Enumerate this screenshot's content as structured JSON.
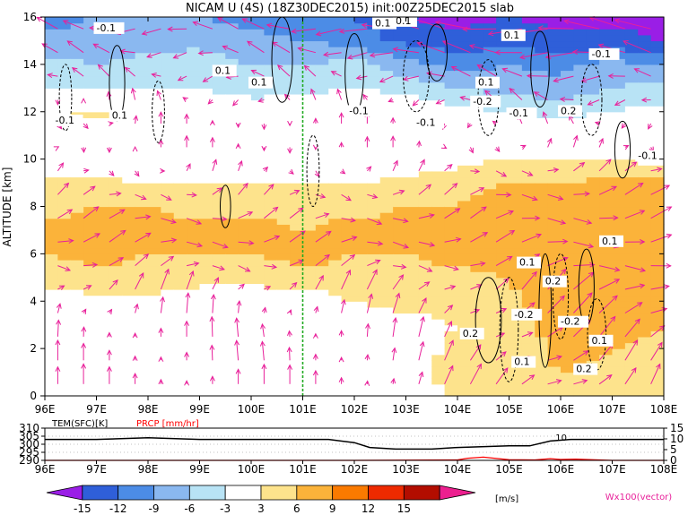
{
  "title": "NICAM U (4S) (18Z30DEC2015) init:00Z25DEC2015 slab",
  "chart_data": [
    {
      "type": "heatmap",
      "name": "zonal-wind cross section",
      "ylabel": "ALTITUDE [km]",
      "x_ticks": [
        "96E",
        "97E",
        "98E",
        "99E",
        "100E",
        "101E",
        "102E",
        "103E",
        "104E",
        "105E",
        "106E",
        "107E",
        "108E"
      ],
      "y_ticks": [
        "0",
        "2",
        "4",
        "6",
        "8",
        "10",
        "12",
        "14",
        "16"
      ],
      "xlim": [
        96,
        108
      ],
      "ylim": [
        0,
        16
      ],
      "marker_line_lon": 101,
      "altitudes_km": [
        0,
        1,
        2,
        3,
        4,
        5,
        6,
        7,
        8,
        9,
        10,
        11,
        12,
        13,
        14,
        15,
        16
      ],
      "lons": [
        96,
        97,
        98,
        99,
        100,
        101,
        102,
        103,
        104,
        105,
        106,
        107,
        108
      ],
      "u_ms": [
        [
          0,
          0,
          0,
          0,
          0,
          0,
          0,
          0,
          4,
          5,
          6,
          5,
          3
        ],
        [
          0,
          0,
          0,
          0,
          0,
          0,
          0,
          1,
          5,
          5,
          6,
          5,
          4
        ],
        [
          0,
          0,
          0,
          0,
          -2,
          0,
          0,
          1,
          4,
          3,
          7,
          6,
          5
        ],
        [
          1,
          0,
          0,
          0,
          0,
          0,
          0,
          2,
          3,
          4,
          8,
          7,
          6
        ],
        [
          1,
          2,
          2,
          1,
          1,
          1,
          3,
          4,
          4,
          5,
          8,
          8,
          7
        ],
        [
          4,
          5,
          5,
          4,
          4,
          5,
          5,
          5,
          5,
          6,
          9,
          9,
          8
        ],
        [
          6,
          7,
          6,
          6,
          6,
          7,
          6,
          6,
          7,
          8,
          9,
          8,
          9
        ],
        [
          7,
          7,
          7,
          7,
          7,
          6,
          7,
          7,
          7,
          8,
          8,
          8,
          9
        ],
        [
          5,
          6,
          6,
          5,
          5,
          5,
          5,
          6,
          6,
          7,
          7,
          8,
          9
        ],
        [
          4,
          4,
          3,
          3,
          3,
          3,
          3,
          4,
          5,
          6,
          6,
          7,
          7
        ],
        [
          1,
          0,
          0,
          0,
          0,
          0,
          0,
          0,
          2,
          3,
          3,
          3,
          2
        ],
        [
          0,
          0,
          0,
          0,
          0,
          0,
          0,
          0,
          0,
          0,
          0,
          0,
          0
        ],
        [
          3,
          4,
          0,
          0,
          0,
          0,
          0,
          0,
          -2,
          -3,
          -4,
          -3,
          -2
        ],
        [
          -3,
          -4,
          -3,
          -3,
          -5,
          -4,
          -3,
          -4,
          -6,
          -7,
          -8,
          -6,
          -5
        ],
        [
          -5,
          -6,
          -5,
          -4,
          -6,
          -6,
          -5,
          -8,
          -10,
          -9,
          -10,
          -8,
          -9
        ],
        [
          -8,
          -8,
          -7,
          -7,
          -8,
          -9,
          -10,
          -13,
          -14,
          -13,
          -14,
          -14,
          -15
        ],
        [
          -10,
          -9,
          -9,
          -9,
          -10,
          -11,
          -12,
          -15,
          -16,
          -15,
          -16,
          -16,
          -16
        ]
      ],
      "w_contour_labels": [
        "-0.1",
        "0.1",
        "0.1",
        "0.1",
        "-0.1",
        "0.1",
        "-0.1",
        "-0.1",
        "0.1",
        "-0.2",
        "-0.1",
        "0.2",
        "0.1",
        "-0.1",
        "-0.1",
        "0.1",
        "0.1",
        "0.2",
        "-0.2",
        "-0.2",
        "0.2",
        "0.1",
        "0.1",
        "0.2",
        "0.1"
      ]
    },
    {
      "type": "line",
      "name": "surface panel",
      "x_ticks": [
        "96E",
        "97E",
        "98E",
        "99E",
        "100E",
        "101E",
        "102E",
        "103E",
        "104E",
        "105E",
        "106E",
        "107E",
        "108E"
      ],
      "left_label": "TEM(SFC)[K]",
      "right_label": "PRCP [mm/hr]",
      "left_ticks": [
        "310",
        "305",
        "300",
        "295",
        "290"
      ],
      "right_ticks": [
        "15",
        "10",
        "5",
        "0"
      ],
      "left_ylim": [
        290,
        310
      ],
      "right_ylim": [
        0,
        15
      ],
      "annotation": "10",
      "series": [
        {
          "name": "TEM(SFC)[K]",
          "color": "#000000",
          "x": [
            96,
            97,
            98,
            99,
            100,
            101,
            101.5,
            102,
            102.3,
            102.8,
            103.5,
            104,
            105,
            105.4,
            105.8,
            106.2,
            107,
            108
          ],
          "y": [
            303,
            303,
            304,
            303,
            303,
            303,
            303,
            301,
            298,
            297,
            297,
            298,
            299,
            299,
            302,
            303,
            303,
            303
          ]
        },
        {
          "name": "PRCP [mm/hr]",
          "color": "#ff0000",
          "x": [
            96,
            101,
            102,
            103,
            104,
            104.2,
            104.5,
            104.8,
            105,
            105.5,
            105.8,
            106,
            106.3,
            106.6,
            107,
            108
          ],
          "y": [
            0,
            0,
            0,
            0.1,
            0.2,
            1.0,
            1.5,
            0.8,
            0.3,
            0.2,
            0.8,
            0.4,
            0.6,
            0.3,
            0,
            0
          ]
        }
      ]
    }
  ],
  "colorbar": {
    "ticks": [
      "-15",
      "-12",
      "-9",
      "-6",
      "-3",
      "3",
      "6",
      "9",
      "12",
      "15"
    ],
    "unit": "[m/s]",
    "colors": [
      "#9a1ee6",
      "#2f5fd9",
      "#4c8ce6",
      "#8ab8f0",
      "#b8e3f5",
      "#ffffff",
      "#fde38c",
      "#fbb33a",
      "#fa7a00",
      "#ee2a00",
      "#b30d00",
      "#ec1f8f"
    ],
    "vector_label": "Wx100(vector)"
  },
  "colors": {
    "vector": "#e8209a",
    "marker": "#22aa22",
    "prcp": "#ff0000"
  }
}
